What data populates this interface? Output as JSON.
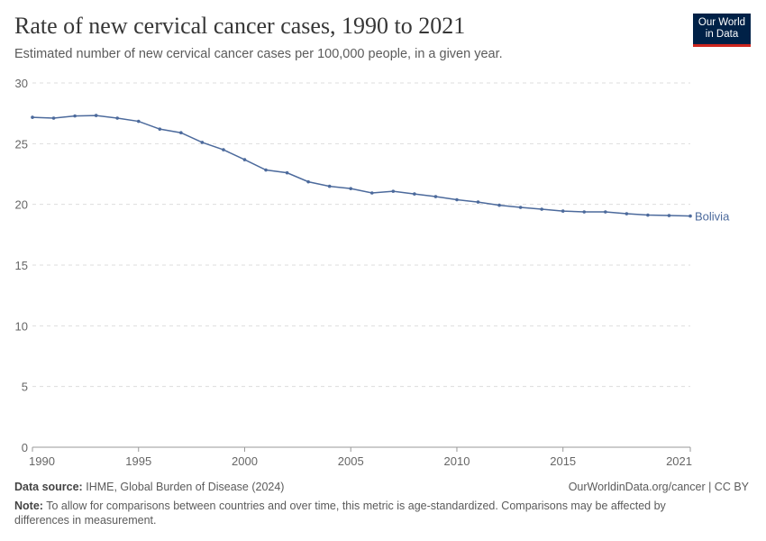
{
  "header": {
    "title": "Rate of new cervical cancer cases, 1990 to 2021",
    "subtitle": "Estimated number of new cervical cancer cases per 100,000 people, in a given year.",
    "logo": "Our World in Data"
  },
  "chart_data": {
    "type": "line",
    "x": [
      1990,
      1991,
      1992,
      1993,
      1994,
      1995,
      1996,
      1997,
      1998,
      1999,
      2000,
      2001,
      2002,
      2003,
      2004,
      2005,
      2006,
      2007,
      2008,
      2009,
      2010,
      2011,
      2012,
      2013,
      2014,
      2015,
      2016,
      2017,
      2018,
      2019,
      2020,
      2021
    ],
    "series": [
      {
        "name": "Bolivia",
        "color": "#4c6a9c",
        "values": [
          27.17,
          27.1,
          27.28,
          27.32,
          27.1,
          26.84,
          26.2,
          25.9,
          25.1,
          24.5,
          23.68,
          22.83,
          22.6,
          21.86,
          21.49,
          21.3,
          20.94,
          21.08,
          20.86,
          20.64,
          20.38,
          20.19,
          19.93,
          19.75,
          19.6,
          19.45,
          19.38,
          19.38,
          19.23,
          19.12,
          19.08,
          19.04
        ]
      }
    ],
    "ylim": [
      0,
      30
    ],
    "xlim": [
      1990,
      2021
    ],
    "yticks": [
      "0",
      "5",
      "10",
      "15",
      "20",
      "25",
      "30"
    ],
    "xticks": [
      "1990",
      "1995",
      "2000",
      "2005",
      "2010",
      "2015",
      "2021"
    ],
    "grid": "horizontal dashed"
  },
  "footer": {
    "source_label": "Data source:",
    "source": "IHME, Global Burden of Disease (2024)",
    "url": "OurWorldinData.org/cancer | CC BY",
    "note_label": "Note:",
    "note": "To allow for comparisons between countries and over time, this metric is age-standardized. Comparisons may be affected by differences in measurement."
  }
}
